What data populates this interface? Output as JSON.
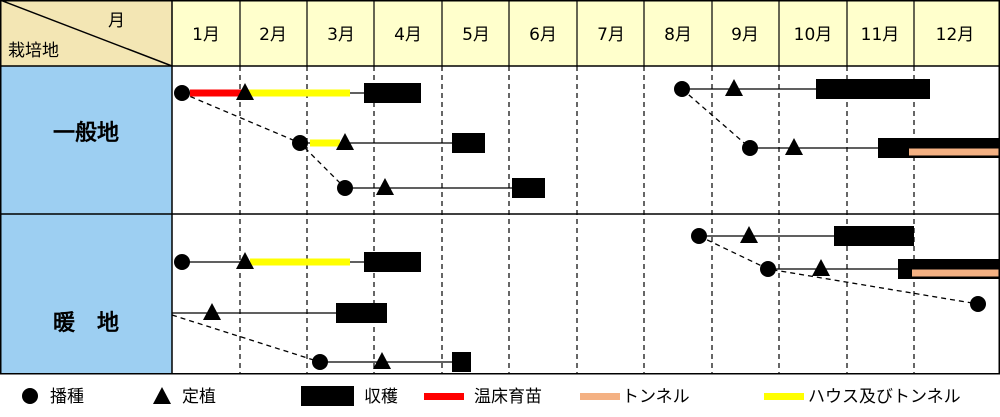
{
  "corner": {
    "top_label": "月",
    "bottom_label": "栽培地"
  },
  "months": [
    "1月",
    "2月",
    "3月",
    "4月",
    "5月",
    "6月",
    "7月",
    "8月",
    "9月",
    "10月",
    "11月",
    "12月"
  ],
  "regions": [
    {
      "label": "一般地"
    },
    {
      "label": "暖　地"
    }
  ],
  "legend": {
    "sowing": "播種",
    "planting": "定植",
    "harvest": "収穫",
    "hotbed": "温床育苗",
    "tunnel": "トンネル",
    "house": "ハウス及びトンネル"
  },
  "colors": {
    "header_bg": "#FFFFCC",
    "region_bg": "#9DCFF2",
    "hotbed": "#FF0000",
    "tunnel": "#F4B183",
    "house": "#FFFF00",
    "harvest": "#000000"
  }
}
